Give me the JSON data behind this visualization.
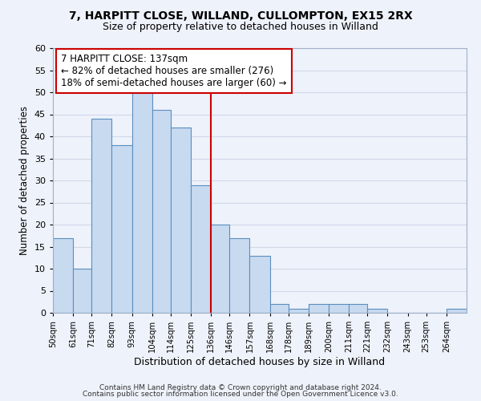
{
  "title": "7, HARPITT CLOSE, WILLAND, CULLOMPTON, EX15 2RX",
  "subtitle": "Size of property relative to detached houses in Willand",
  "xlabel": "Distribution of detached houses by size in Willand",
  "ylabel": "Number of detached properties",
  "bin_labels": [
    "50sqm",
    "61sqm",
    "71sqm",
    "82sqm",
    "93sqm",
    "104sqm",
    "114sqm",
    "125sqm",
    "136sqm",
    "146sqm",
    "157sqm",
    "168sqm",
    "178sqm",
    "189sqm",
    "200sqm",
    "211sqm",
    "221sqm",
    "232sqm",
    "243sqm",
    "253sqm",
    "264sqm"
  ],
  "bin_edges": [
    50,
    61,
    71,
    82,
    93,
    104,
    114,
    125,
    136,
    146,
    157,
    168,
    178,
    189,
    200,
    211,
    221,
    232,
    243,
    253,
    264,
    275
  ],
  "counts": [
    17,
    10,
    44,
    38,
    50,
    46,
    42,
    29,
    20,
    17,
    13,
    2,
    1,
    2,
    2,
    2,
    1,
    0,
    0,
    0,
    1
  ],
  "bar_color": "#c8daf0",
  "bar_edgecolor": "#5a8fc0",
  "vline_x": 136,
  "vline_color": "#cc0000",
  "annotation_line1": "7 HARPITT CLOSE: 137sqm",
  "annotation_line2": "← 82% of detached houses are smaller (276)",
  "annotation_line3": "18% of semi-detached houses are larger (60) →",
  "annotation_box_edgecolor": "#cc0000",
  "annotation_fontsize": 8.5,
  "ylim": [
    0,
    60
  ],
  "yticks": [
    0,
    5,
    10,
    15,
    20,
    25,
    30,
    35,
    40,
    45,
    50,
    55,
    60
  ],
  "grid_color": "#d0d8e8",
  "background_color": "#eef2fa",
  "footer1": "Contains HM Land Registry data © Crown copyright and database right 2024.",
  "footer2": "Contains public sector information licensed under the Open Government Licence v3.0.",
  "title_fontsize": 10,
  "subtitle_fontsize": 9,
  "xlabel_fontsize": 9,
  "ylabel_fontsize": 8.5
}
